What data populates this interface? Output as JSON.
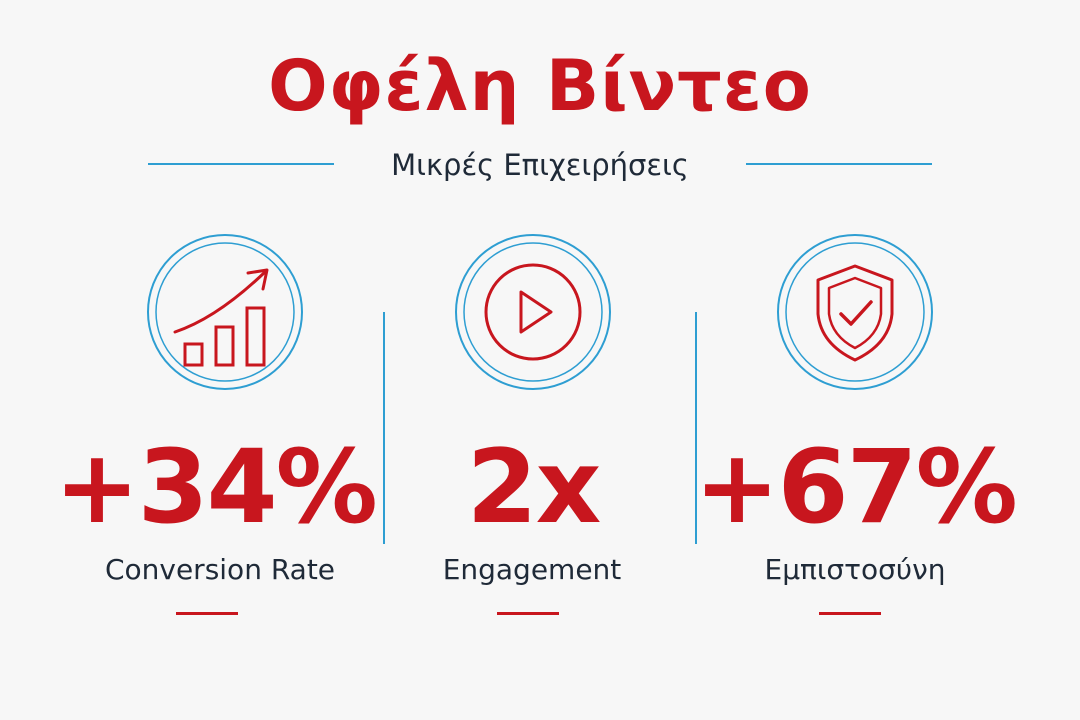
{
  "title": "Οφέλη Βίντεο",
  "subtitle": "Μικρές Επιχειρήσεις",
  "colors": {
    "accent_red": "#c8161e",
    "accent_blue": "#2e9ed2",
    "text_dark": "#1f2a38",
    "background": "#f7f7f7"
  },
  "stats": [
    {
      "icon": "growth-chart-icon",
      "value": "+34%",
      "label": "Conversion Rate"
    },
    {
      "icon": "play-icon",
      "value": "2x",
      "label": "Engagement"
    },
    {
      "icon": "shield-check-icon",
      "value": "+67%",
      "label": "Εμπιστοσύνη"
    }
  ]
}
